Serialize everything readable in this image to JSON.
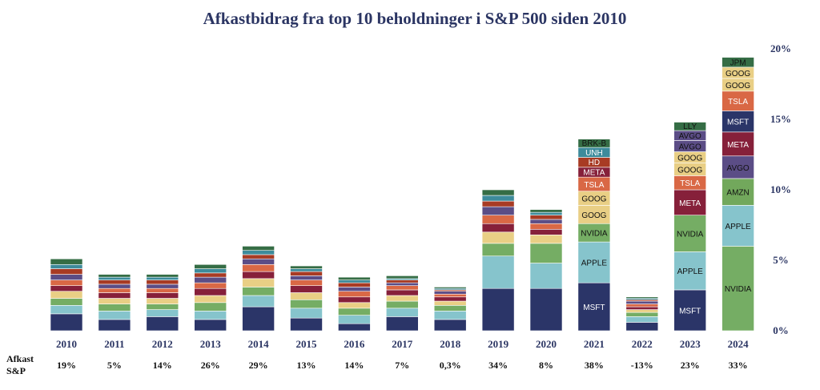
{
  "colors": {
    "MSFT": "#2b3568",
    "APPLE": "#86c4cc",
    "NVIDIA": "#75ad64",
    "GOOG": "#e9cf85",
    "AMZN": "#72a85c",
    "META": "#86203a",
    "TSLA": "#d96845",
    "AVGO": "#5b4d86",
    "HD": "#a83b24",
    "UNH": "#3d8b9b",
    "BRK-B": "#356d45",
    "LLY": "#356d45",
    "JPM": "#356d45"
  },
  "chart_data": {
    "type": "bar",
    "stacked": true,
    "title": "Afkastbidrag fra top 10 beholdninger i S&P 500 siden 2010",
    "categories": [
      "2010",
      "2011",
      "2012",
      "2013",
      "2014",
      "2015",
      "2016",
      "2017",
      "2018",
      "2019",
      "2020",
      "2021",
      "2022",
      "2023",
      "2024"
    ],
    "totals": [
      5.1,
      4.0,
      4.0,
      4.7,
      6.0,
      4.6,
      3.8,
      3.9,
      3.1,
      10.0,
      8.6,
      13.8,
      2.4,
      14.9,
      19.5
    ],
    "returns_label": "Afkast S&P",
    "returns": [
      "19%",
      "5%",
      "14%",
      "26%",
      "29%",
      "13%",
      "14%",
      "7%",
      "0,3%",
      "34%",
      "8%",
      "38%",
      "-13%",
      "23%",
      "33%"
    ],
    "y_ticks": [
      "0%",
      "5%",
      "10%",
      "15%",
      "20%"
    ],
    "ylim": [
      0,
      20
    ],
    "y_axis_position": "right",
    "labeled_stacks": {
      "2021": [
        {
          "name": "MSFT",
          "value": 3.4
        },
        {
          "name": "APPLE",
          "value": 2.9
        },
        {
          "name": "NVIDIA",
          "value": 1.3
        },
        {
          "name": "GOOG",
          "value": 1.3
        },
        {
          "name": "GOOG",
          "value": 1.0
        },
        {
          "name": "TSLA",
          "value": 1.0
        },
        {
          "name": "META",
          "value": 0.7
        },
        {
          "name": "HD",
          "value": 0.7
        },
        {
          "name": "UNH",
          "value": 0.7
        },
        {
          "name": "BRK-B",
          "value": 0.6
        }
      ],
      "2023": [
        {
          "name": "MSFT",
          "value": 2.9
        },
        {
          "name": "APPLE",
          "value": 2.7
        },
        {
          "name": "NVIDIA",
          "value": 2.6
        },
        {
          "name": "META",
          "value": 1.8
        },
        {
          "name": "TSLA",
          "value": 1.0
        },
        {
          "name": "GOOG",
          "value": 0.9
        },
        {
          "name": "GOOG",
          "value": 0.8
        },
        {
          "name": "AVGO",
          "value": 0.8
        },
        {
          "name": "AVGO",
          "value": 0.7
        },
        {
          "name": "LLY",
          "value": 0.6
        }
      ],
      "2024": [
        {
          "name": "NVIDIA",
          "value": 6.0
        },
        {
          "name": "APPLE",
          "value": 2.9
        },
        {
          "name": "AMZN",
          "value": 1.9
        },
        {
          "name": "AVGO",
          "value": 1.6
        },
        {
          "name": "META",
          "value": 1.7
        },
        {
          "name": "MSFT",
          "value": 1.5
        },
        {
          "name": "TSLA",
          "value": 1.4
        },
        {
          "name": "GOOG",
          "value": 0.9
        },
        {
          "name": "GOOG",
          "value": 0.8
        },
        {
          "name": "JPM",
          "value": 0.7
        }
      ]
    },
    "unlabeled_color_order": [
      "#2b3568",
      "#86c4cc",
      "#75ad64",
      "#e9cf85",
      "#86203a",
      "#d96845",
      "#5b4d86",
      "#a83b24",
      "#3d8b9b",
      "#356d45"
    ],
    "unlabeled_stacks": {
      "2010": [
        1.2,
        0.6,
        0.5,
        0.5,
        0.4,
        0.4,
        0.4,
        0.4,
        0.3,
        0.4
      ],
      "2011": [
        0.8,
        0.6,
        0.5,
        0.4,
        0.4,
        0.3,
        0.3,
        0.3,
        0.2,
        0.2
      ],
      "2012": [
        1.0,
        0.5,
        0.4,
        0.4,
        0.4,
        0.3,
        0.3,
        0.3,
        0.2,
        0.2
      ],
      "2013": [
        0.8,
        0.6,
        0.6,
        0.5,
        0.5,
        0.4,
        0.4,
        0.3,
        0.3,
        0.3
      ],
      "2014": [
        1.7,
        0.8,
        0.6,
        0.6,
        0.5,
        0.5,
        0.4,
        0.3,
        0.3,
        0.3
      ],
      "2015": [
        0.9,
        0.7,
        0.6,
        0.5,
        0.5,
        0.4,
        0.3,
        0.3,
        0.2,
        0.2
      ],
      "2016": [
        0.5,
        0.6,
        0.5,
        0.4,
        0.4,
        0.4,
        0.3,
        0.3,
        0.2,
        0.2
      ],
      "2017": [
        1.0,
        0.6,
        0.5,
        0.4,
        0.4,
        0.3,
        0.2,
        0.2,
        0.1,
        0.2
      ],
      "2018": [
        0.8,
        0.6,
        0.4,
        0.3,
        0.3,
        0.2,
        0.2,
        0.1,
        0.1,
        0.1
      ],
      "2019": [
        3.0,
        2.3,
        0.9,
        0.8,
        0.6,
        0.6,
        0.6,
        0.4,
        0.4,
        0.4
      ],
      "2020": [
        3.0,
        1.8,
        1.4,
        0.6,
        0.4,
        0.4,
        0.3,
        0.3,
        0.2,
        0.2
      ],
      "2022": [
        0.6,
        0.4,
        0.3,
        0.2,
        0.2,
        0.2,
        0.2,
        0.1,
        0.1,
        0.1
      ]
    }
  }
}
